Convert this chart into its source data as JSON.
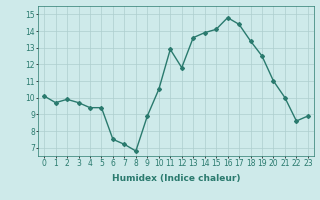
{
  "x": [
    0,
    1,
    2,
    3,
    4,
    5,
    6,
    7,
    8,
    9,
    10,
    11,
    12,
    13,
    14,
    15,
    16,
    17,
    18,
    19,
    20,
    21,
    22,
    23
  ],
  "y": [
    10.1,
    9.7,
    9.9,
    9.7,
    9.4,
    9.4,
    7.5,
    7.2,
    6.8,
    8.9,
    10.5,
    12.9,
    11.8,
    13.6,
    13.9,
    14.1,
    14.8,
    14.4,
    13.4,
    12.5,
    11.0,
    10.0,
    8.6,
    8.9
  ],
  "line_color": "#2a7a6e",
  "marker": "D",
  "marker_size": 2.0,
  "linewidth": 1.0,
  "xlabel": "Humidex (Indice chaleur)",
  "xlim": [
    -0.5,
    23.5
  ],
  "ylim": [
    6.5,
    15.5
  ],
  "yticks": [
    7,
    8,
    9,
    10,
    11,
    12,
    13,
    14,
    15
  ],
  "xticks": [
    0,
    1,
    2,
    3,
    4,
    5,
    6,
    7,
    8,
    9,
    10,
    11,
    12,
    13,
    14,
    15,
    16,
    17,
    18,
    19,
    20,
    21,
    22,
    23
  ],
  "xtick_labels": [
    "0",
    "1",
    "2",
    "3",
    "4",
    "5",
    "6",
    "7",
    "8",
    "9",
    "10",
    "11",
    "12",
    "13",
    "14",
    "15",
    "16",
    "17",
    "18",
    "19",
    "20",
    "21",
    "22",
    "23"
  ],
  "bg_color": "#ceeaea",
  "grid_color": "#aecece",
  "grid_linewidth": 0.5,
  "tick_fontsize": 5.5,
  "xlabel_fontsize": 6.5
}
